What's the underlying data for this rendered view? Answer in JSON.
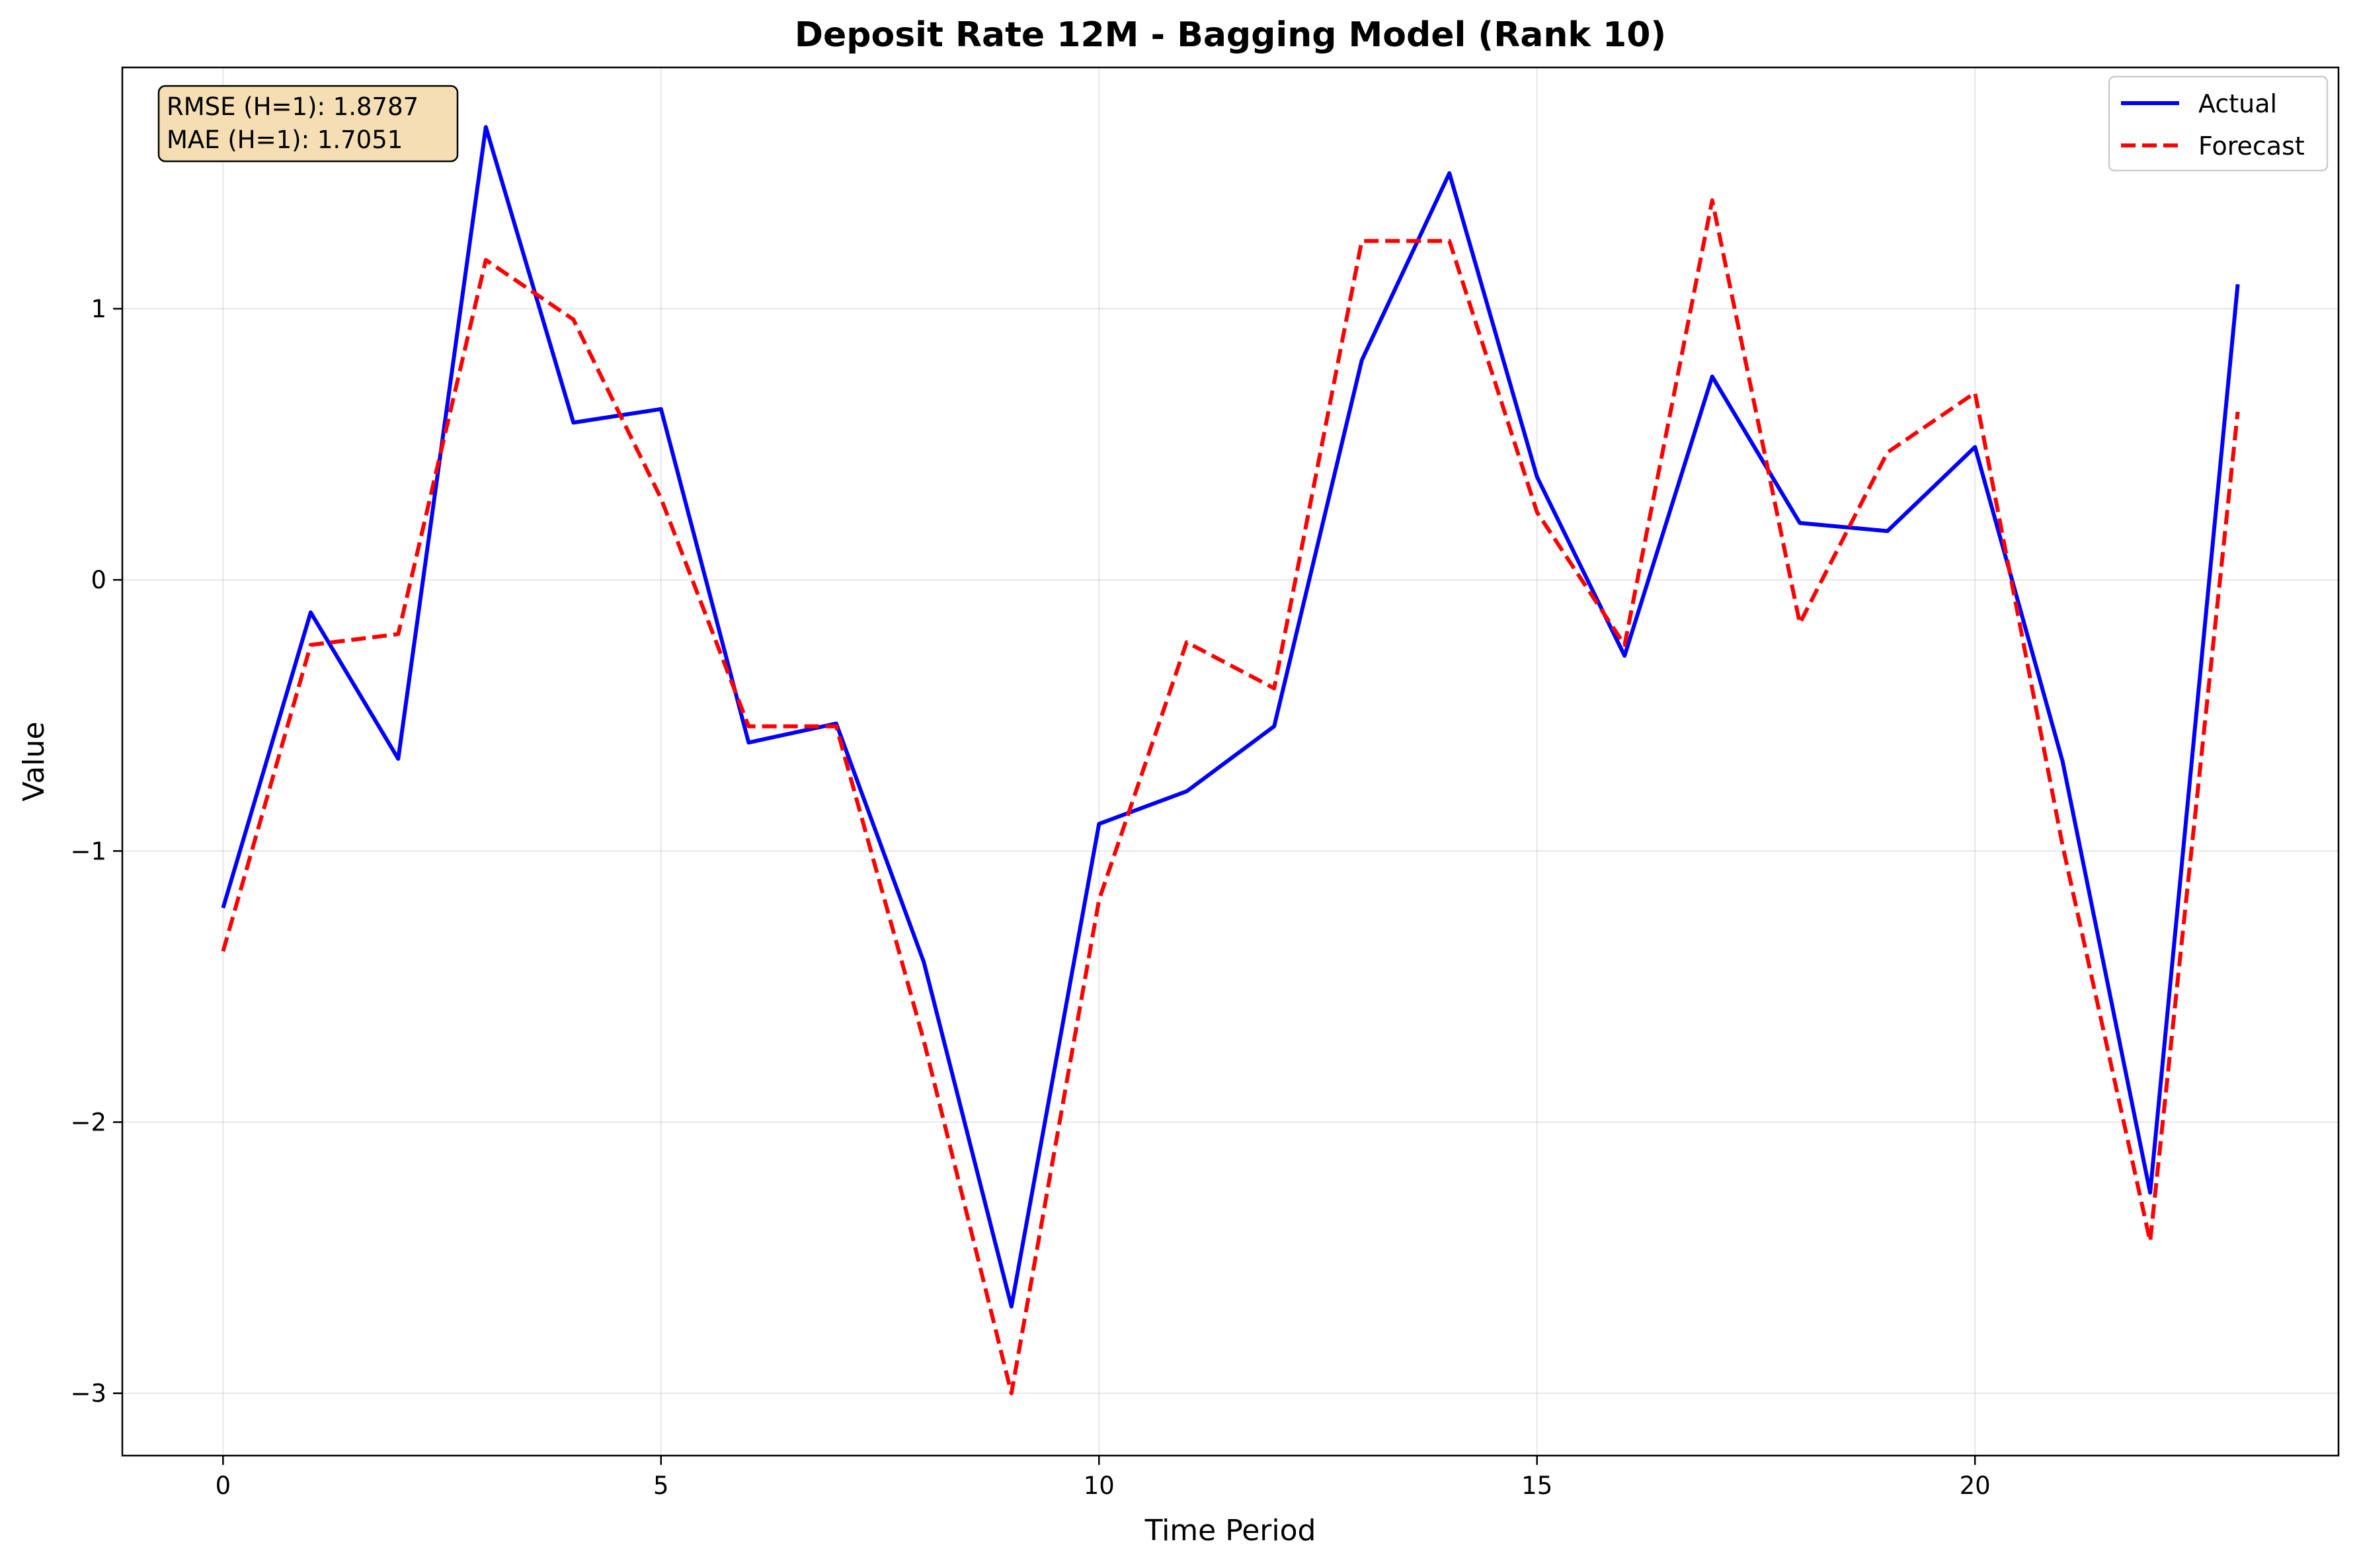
{
  "chart_data": {
    "type": "line",
    "title": "Deposit Rate 12M - Bagging Model (Rank 10)",
    "xlabel": "Time Period",
    "ylabel": "Value",
    "xlim": [
      -1.15,
      24.15
    ],
    "ylim": [
      -3.23,
      1.89
    ],
    "xticks": [
      0,
      5,
      10,
      15,
      20
    ],
    "xtick_labels": [
      "0",
      "5",
      "10",
      "15",
      "20"
    ],
    "yticks": [
      -3,
      -2,
      -1,
      0,
      1
    ],
    "ytick_labels": [
      "−3",
      "−2",
      "−1",
      "0",
      "1"
    ],
    "grid": true,
    "legend_position": "top-right",
    "x": [
      0,
      1,
      2,
      3,
      4,
      5,
      6,
      7,
      8,
      9,
      10,
      11,
      12,
      13,
      14,
      15,
      16,
      17,
      18,
      19,
      20,
      21,
      22,
      23
    ],
    "series": [
      {
        "name": "Actual",
        "color": "#0000ff",
        "style": "solid",
        "values": [
          -1.21,
          -0.12,
          -0.66,
          1.67,
          0.58,
          0.63,
          -0.6,
          -0.53,
          -1.41,
          -2.68,
          -0.9,
          -0.78,
          -0.54,
          0.81,
          1.5,
          0.38,
          -0.28,
          0.75,
          0.21,
          0.18,
          0.49,
          -0.67,
          -2.26,
          1.09
        ]
      },
      {
        "name": "Forecast",
        "color": "#ff0000",
        "style": "dashed",
        "values": [
          -1.37,
          -0.24,
          -0.2,
          1.18,
          0.96,
          0.3,
          -0.54,
          -0.54,
          -1.7,
          -3.0,
          -1.18,
          -0.23,
          -0.4,
          1.25,
          1.25,
          0.25,
          -0.24,
          1.4,
          -0.16,
          0.47,
          0.69,
          -0.98,
          -2.44,
          0.62
        ]
      }
    ],
    "annotations": [
      "RMSE (H=1): 1.8787",
      "MAE (H=1): 1.7051"
    ],
    "annotation_box_color": "#f5deb3"
  }
}
